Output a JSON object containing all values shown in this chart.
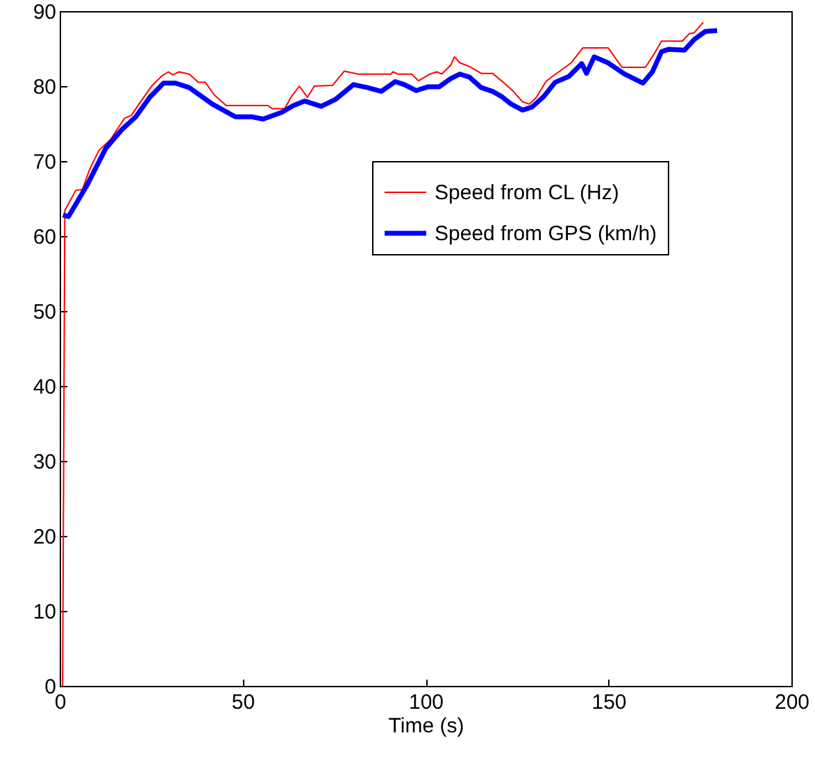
{
  "chart_data": {
    "type": "line",
    "xlabel": "Time (s)",
    "xlim": [
      0,
      200
    ],
    "xticks": [
      0,
      50,
      100,
      150,
      200
    ],
    "ylim": [
      0,
      90
    ],
    "yticks": [
      0,
      10,
      20,
      30,
      40,
      50,
      60,
      70,
      80,
      90
    ],
    "grid": false,
    "legend": "top right",
    "line_style": "solid",
    "marker": "none",
    "series": [
      {
        "name": "Speed from CL (Hz)",
        "color": "#ff0000",
        "x": [
          0.8,
          1.4,
          4.4,
          6.2,
          8.2,
          10.7,
          13.9,
          17.7,
          19.6,
          22.1,
          25.3,
          27.8,
          29.7,
          30.9,
          32.6,
          35.4,
          37.9,
          39.8,
          42.3,
          45.5,
          56.9,
          58.1,
          61.5,
          63.2,
          65.5,
          67.7,
          69.6,
          74.6,
          77.8,
          81.6,
          90.5,
          91.1,
          92.4,
          96.2,
          98.1,
          101.2,
          103.1,
          104.4,
          106.9,
          107.9,
          109.4,
          112.0,
          115.2,
          118.3,
          121.5,
          124.0,
          126.5,
          128.4,
          130.3,
          132.9,
          134.7,
          137.3,
          139.8,
          143.0,
          149.9,
          153.7,
          160.1,
          162.6,
          164.5,
          170.2,
          172.1,
          173.4,
          175.9
        ],
        "values": [
          0,
          63.4,
          66.1,
          66.2,
          68.9,
          71.4,
          72.9,
          75.7,
          76.1,
          77.9,
          80.1,
          81.3,
          81.9,
          81.5,
          81.9,
          81.6,
          80.5,
          80.5,
          78.8,
          77.4,
          77.4,
          77.0,
          77.0,
          78.5,
          80.0,
          78.5,
          80.0,
          80.1,
          82.0,
          81.6,
          81.6,
          81.9,
          81.6,
          81.6,
          80.7,
          81.6,
          81.9,
          81.6,
          82.8,
          83.9,
          83.1,
          82.6,
          81.7,
          81.7,
          80.4,
          79.3,
          77.9,
          77.6,
          78.5,
          80.6,
          81.3,
          82.2,
          83.1,
          85.1,
          85.1,
          82.5,
          82.5,
          84.4,
          86.0,
          86.0,
          87.0,
          87.1,
          88.5
        ]
      },
      {
        "name": "Speed from GPS (km/h)",
        "color": "#0000ff",
        "x": [
          0.9,
          2.4,
          7.5,
          12.6,
          17.0,
          20.8,
          24.6,
          28.4,
          31.6,
          35.4,
          41.7,
          48.0,
          52.5,
          55.6,
          60.7,
          63.9,
          67.0,
          71.5,
          75.3,
          80.3,
          84.1,
          87.9,
          91.7,
          94.2,
          97.4,
          100.6,
          103.7,
          106.9,
          109.4,
          112.0,
          115.2,
          118.3,
          120.8,
          123.4,
          126.5,
          129.1,
          132.3,
          135.4,
          139.2,
          142.7,
          144.0,
          146.1,
          149.9,
          154.4,
          159.4,
          162.0,
          164.5,
          166.4,
          170.8,
          173.4,
          176.5,
          179.7
        ],
        "values": [
          62.8,
          62.6,
          66.8,
          71.7,
          74.2,
          75.9,
          78.5,
          80.4,
          80.4,
          79.8,
          77.6,
          75.9,
          75.9,
          75.6,
          76.5,
          77.4,
          78.0,
          77.3,
          78.2,
          80.2,
          79.8,
          79.3,
          80.6,
          80.2,
          79.4,
          79.9,
          79.9,
          81.0,
          81.6,
          81.2,
          79.8,
          79.3,
          78.6,
          77.6,
          76.8,
          77.2,
          78.6,
          80.5,
          81.3,
          83.0,
          81.7,
          83.9,
          83.1,
          81.6,
          80.4,
          81.9,
          84.6,
          84.9,
          84.8,
          86.2,
          87.3,
          87.4
        ]
      }
    ]
  }
}
